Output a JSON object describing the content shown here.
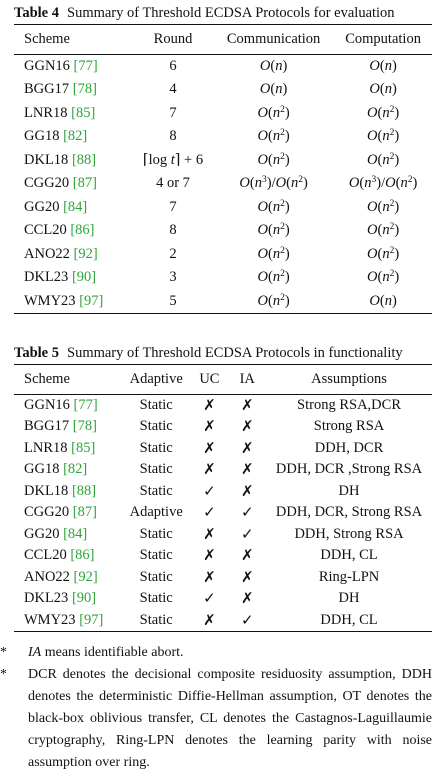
{
  "table4": {
    "number": "Table 4",
    "title": "Summary of Threshold ECDSA Protocols for evaluation",
    "headers": [
      "Scheme",
      "Round",
      "Communication",
      "Computation"
    ],
    "rows": [
      {
        "name": "GGN16",
        "ref": "[77]",
        "round": "6",
        "comm": "O(n)",
        "comp": "O(n)"
      },
      {
        "name": "BGG17",
        "ref": "[78]",
        "round": "4",
        "comm": "O(n)",
        "comp": "O(n)"
      },
      {
        "name": "LNR18",
        "ref": "[85]",
        "round": "7",
        "comm": "O(n2)",
        "comp": "O(n2)"
      },
      {
        "name": "GG18",
        "ref": "[82]",
        "round": "8",
        "comm": "O(n2)",
        "comp": "O(n2)"
      },
      {
        "name": "DKL18",
        "ref": "[88]",
        "round": "⌈log t⌉ + 6",
        "comm": "O(n2)",
        "comp": "O(n2)"
      },
      {
        "name": "CGG20",
        "ref": "[87]",
        "round": "4 or 7",
        "comm": "O(n3)/O(n2)",
        "comp": "O(n3)/O(n2)"
      },
      {
        "name": "GG20",
        "ref": "[84]",
        "round": "7",
        "comm": "O(n2)",
        "comp": "O(n2)"
      },
      {
        "name": "CCL20",
        "ref": "[86]",
        "round": "8",
        "comm": "O(n2)",
        "comp": "O(n2)"
      },
      {
        "name": "ANO22",
        "ref": "[92]",
        "round": "2",
        "comm": "O(n2)",
        "comp": "O(n2)"
      },
      {
        "name": "DKL23",
        "ref": "[90]",
        "round": "3",
        "comm": "O(n2)",
        "comp": "O(n2)"
      },
      {
        "name": "WMY23",
        "ref": "[97]",
        "round": "5",
        "comm": "O(n2)",
        "comp": "O(n)"
      }
    ]
  },
  "table5": {
    "number": "Table 5",
    "title": "Summary of Threshold ECDSA Protocols in functionality",
    "headers": [
      "Scheme",
      "Adaptive",
      "UC",
      "IA",
      "Assumptions"
    ],
    "rows": [
      {
        "name": "GGN16",
        "ref": "[77]",
        "adaptive": "Static",
        "uc": "✗",
        "ia": "✗",
        "assumptions": "Strong RSA,DCR"
      },
      {
        "name": "BGG17",
        "ref": "[78]",
        "adaptive": "Static",
        "uc": "✗",
        "ia": "✗",
        "assumptions": "Strong RSA"
      },
      {
        "name": "LNR18",
        "ref": "[85]",
        "adaptive": "Static",
        "uc": "✗",
        "ia": "✗",
        "assumptions": "DDH, DCR"
      },
      {
        "name": "GG18",
        "ref": "[82]",
        "adaptive": "Static",
        "uc": "✗",
        "ia": "✗",
        "assumptions": "DDH, DCR ,Strong RSA"
      },
      {
        "name": "DKL18",
        "ref": "[88]",
        "adaptive": "Static",
        "uc": "✓",
        "ia": "✗",
        "assumptions": "DH"
      },
      {
        "name": "CGG20",
        "ref": "[87]",
        "adaptive": "Adaptive",
        "uc": "✓",
        "ia": "✓",
        "assumptions": "DDH, DCR, Strong RSA"
      },
      {
        "name": "GG20",
        "ref": "[84]",
        "adaptive": "Static",
        "uc": "✗",
        "ia": "✓",
        "assumptions": "DDH, Strong RSA"
      },
      {
        "name": "CCL20",
        "ref": "[86]",
        "adaptive": "Static",
        "uc": "✗",
        "ia": "✗",
        "assumptions": "DDH, CL"
      },
      {
        "name": "ANO22",
        "ref": "[92]",
        "adaptive": "Static",
        "uc": "✗",
        "ia": "✗",
        "assumptions": "Ring-LPN"
      },
      {
        "name": "DKL23",
        "ref": "[90]",
        "adaptive": "Static",
        "uc": "✓",
        "ia": "✗",
        "assumptions": "DH"
      },
      {
        "name": "WMY23",
        "ref": "[97]",
        "adaptive": "Static",
        "uc": "✗",
        "ia": "✓",
        "assumptions": "DDH, CL"
      }
    ]
  },
  "notes": {
    "star": "*",
    "note1_term": "IA",
    "note1_rest": " means identifiable abort.",
    "note2": "DCR denotes the decisional composite residuosity assumption, DDH denotes the deterministic Diffie-Hellman assumption, OT denotes the black-box oblivious transfer, CL denotes the Castagnos-Laguillaumie cryptography, Ring-LPN denotes the learning parity with noise assumption over ring."
  },
  "colors": {
    "reference": "#2ea43a",
    "text": "#111111"
  }
}
